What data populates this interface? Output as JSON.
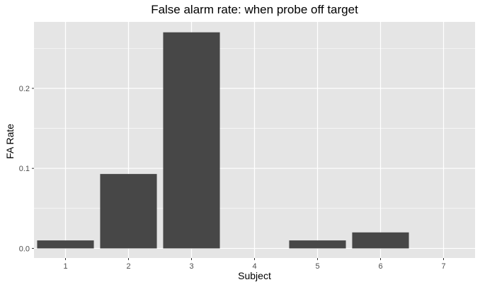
{
  "chart_data": {
    "type": "bar",
    "title": "False alarm rate: when probe off target",
    "xlabel": "Subject",
    "ylabel": "FA Rate",
    "categories": [
      "1",
      "2",
      "3",
      "4",
      "5",
      "6",
      "7"
    ],
    "values": [
      0.01,
      0.093,
      0.27,
      0,
      0.01,
      0.02,
      0
    ],
    "y_ticks": [
      "0.0",
      "0.1",
      "0.2"
    ],
    "ylim": [
      -0.012,
      0.283
    ],
    "grid": true,
    "legend": "none",
    "colors": {
      "panel_background": "#e5e5e5",
      "grid": "#ffffff",
      "bar": "#474747"
    }
  }
}
